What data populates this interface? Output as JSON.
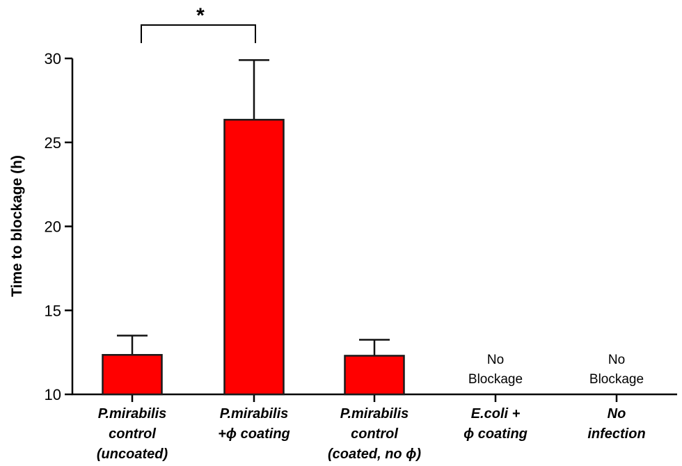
{
  "chart_data": {
    "type": "bar",
    "title": "",
    "xlabel": "",
    "ylabel": "Time to blockage (h)",
    "ylim": [
      10,
      30
    ],
    "yticks": [
      10,
      15,
      20,
      25,
      30
    ],
    "grid": false,
    "legend": null,
    "categories": [
      "P.mirabilis control (uncoated)",
      "P.mirabilis +ϕ coating",
      "P.mirabilis control (coated, no ϕ)",
      "E.coli + ϕ coating",
      "No infection"
    ],
    "category_lines": [
      [
        "P.mirabilis",
        "control",
        "(uncoated)"
      ],
      [
        "P.mirabilis",
        "+ϕ coating"
      ],
      [
        "P.mirabilis",
        "control",
        "(coated, no ϕ)"
      ],
      [
        "E.coli +",
        "ϕ coating"
      ],
      [
        "No",
        "infection"
      ]
    ],
    "values": [
      12.35,
      26.35,
      12.3,
      null,
      null
    ],
    "error_upper": [
      13.5,
      29.9,
      13.25,
      null,
      null
    ],
    "bar_color": "#ff0000",
    "annotations": [
      {
        "category_index": 3,
        "lines": [
          "No",
          "Blockage"
        ]
      },
      {
        "category_index": 4,
        "lines": [
          "No",
          "Blockage"
        ]
      }
    ],
    "significance": [
      {
        "from": 0,
        "to": 1,
        "label": "*"
      }
    ]
  }
}
